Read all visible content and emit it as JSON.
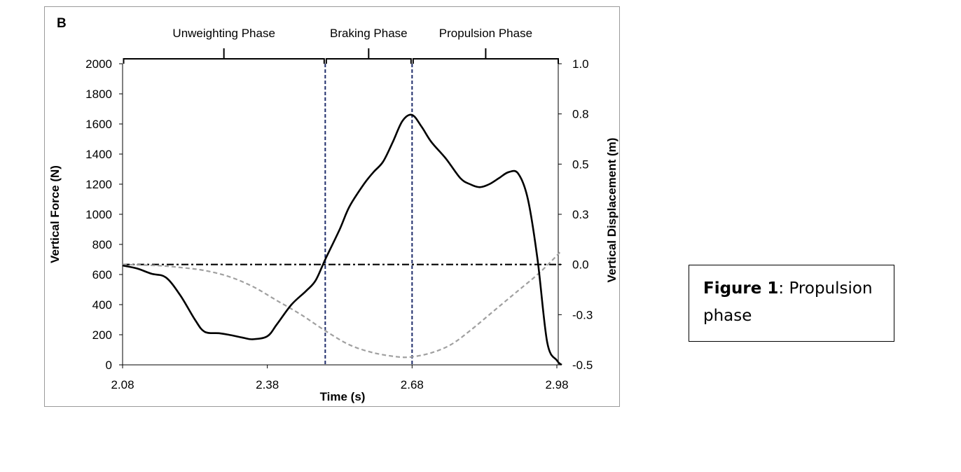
{
  "panel_label": "B",
  "caption": {
    "label": "Figure 1",
    "separator": ":",
    "text": " Propulsion phase"
  },
  "chart_data": {
    "type": "line",
    "title": "",
    "xlabel": "Time (s)",
    "ylabel_left": "Vertical Force (N)",
    "ylabel_right": "Vertical Displacement (m)",
    "x_ticks": [
      "2.08",
      "2.38",
      "2.68",
      "2.98"
    ],
    "x_tick_values": [
      2.08,
      2.38,
      2.68,
      2.98
    ],
    "xlim": [
      2.08,
      2.99
    ],
    "y_left_ticks": [
      "0",
      "200",
      "400",
      "600",
      "800",
      "1000",
      "1200",
      "1400",
      "1600",
      "1800",
      "2000"
    ],
    "y_left_tick_values": [
      0,
      200,
      400,
      600,
      800,
      1000,
      1200,
      1400,
      1600,
      1800,
      2000
    ],
    "ylim_left": [
      0,
      2000
    ],
    "y_right_ticks": [
      "-0.5",
      "-0.3",
      "0.0",
      "0.3",
      "0.5",
      "0.8",
      "1.0"
    ],
    "y_right_tick_values": [
      -0.5,
      -0.25,
      0.0,
      0.25,
      0.5,
      0.75,
      1.0
    ],
    "ylim_right": [
      -0.5,
      1.0
    ],
    "grid": false,
    "phases": [
      {
        "label": "Unweighting Phase",
        "start": 2.08,
        "end": 2.5
      },
      {
        "label": "Braking Phase",
        "start": 2.5,
        "end": 2.68
      },
      {
        "label": "Propulsion Phase",
        "start": 2.68,
        "end": 2.99
      }
    ],
    "phase_boundaries": [
      2.5,
      2.68
    ],
    "series": [
      {
        "style": "solid",
        "color": "#000000",
        "axis": "left",
        "x": [
          2.08,
          2.11,
          2.14,
          2.17,
          2.2,
          2.23,
          2.25,
          2.28,
          2.3,
          2.33,
          2.35,
          2.38,
          2.4,
          2.43,
          2.46,
          2.48,
          2.5,
          2.53,
          2.55,
          2.58,
          2.6,
          2.62,
          2.64,
          2.66,
          2.68,
          2.7,
          2.72,
          2.75,
          2.78,
          2.8,
          2.82,
          2.84,
          2.86,
          2.88,
          2.9,
          2.92,
          2.94,
          2.96,
          2.98,
          2.99
        ],
        "y": [
          660,
          640,
          605,
          580,
          460,
          300,
          220,
          210,
          200,
          180,
          170,
          190,
          270,
          400,
          490,
          560,
          700,
          900,
          1050,
          1200,
          1280,
          1350,
          1480,
          1620,
          1660,
          1580,
          1480,
          1370,
          1240,
          1200,
          1180,
          1200,
          1240,
          1280,
          1270,
          1100,
          700,
          150,
          30,
          0
        ]
      },
      {
        "style": "dashed",
        "color": "#a0a0a0",
        "axis": "right",
        "x": [
          2.08,
          2.15,
          2.2,
          2.25,
          2.3,
          2.35,
          2.4,
          2.45,
          2.5,
          2.55,
          2.6,
          2.65,
          2.68,
          2.72,
          2.76,
          2.8,
          2.85,
          2.9,
          2.94,
          2.97,
          2.99
        ],
        "y": [
          0.0,
          -0.005,
          -0.015,
          -0.03,
          -0.06,
          -0.11,
          -0.18,
          -0.25,
          -0.33,
          -0.4,
          -0.44,
          -0.46,
          -0.46,
          -0.44,
          -0.4,
          -0.33,
          -0.23,
          -0.13,
          -0.05,
          0.02,
          0.07
        ]
      },
      {
        "style": "dash-dot",
        "color": "#000000",
        "axis": "right",
        "x": [
          2.08,
          2.99
        ],
        "y": [
          0.0,
          0.0
        ]
      }
    ]
  }
}
